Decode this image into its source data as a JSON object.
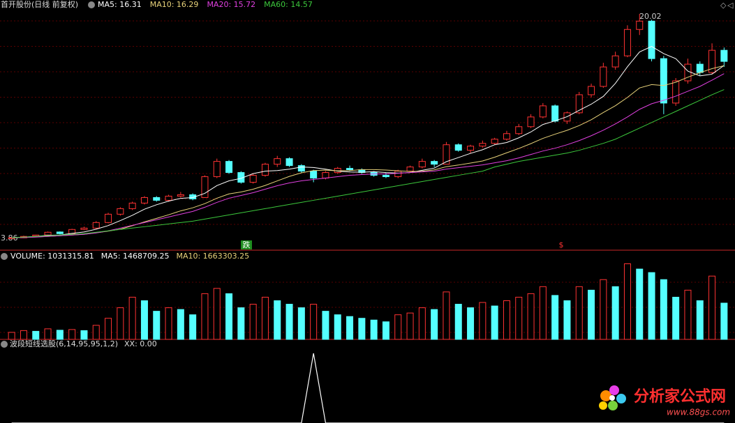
{
  "header": {
    "title": "首开股份(日线 前复权)"
  },
  "chart_data": [
    {
      "type": "candlestick",
      "open": [
        3.86,
        3.9,
        4.02,
        4.1,
        4.32,
        4.2,
        4.5,
        4.6,
        5.0,
        5.6,
        6.0,
        6.4,
        6.8,
        6.6,
        6.9,
        7.0,
        6.8,
        8.3,
        9.4,
        8.6,
        7.9,
        8.4,
        9.2,
        9.6,
        9.1,
        8.7,
        8.2,
        8.6,
        8.9,
        8.8,
        8.6,
        8.4,
        8.3,
        8.7,
        9.0,
        9.4,
        9.2,
        10.6,
        10.2,
        10.5,
        10.7,
        11.0,
        11.4,
        11.9,
        12.6,
        13.4,
        12.3,
        12.9,
        14.2,
        14.8,
        16.2,
        17.0,
        18.9,
        19.5,
        16.8,
        13.6,
        15.2,
        16.4,
        15.8,
        17.4
      ],
      "high": [
        3.95,
        4.05,
        4.12,
        4.35,
        4.36,
        4.55,
        4.7,
        5.1,
        5.7,
        6.1,
        6.5,
        6.9,
        6.9,
        7.0,
        7.2,
        7.1,
        8.4,
        9.6,
        9.5,
        8.7,
        8.5,
        9.3,
        9.8,
        9.7,
        9.2,
        8.8,
        8.7,
        9.0,
        9.1,
        8.9,
        8.7,
        8.6,
        8.8,
        9.1,
        9.6,
        9.5,
        10.8,
        10.7,
        10.6,
        10.9,
        11.1,
        11.6,
        12.1,
        12.8,
        13.6,
        13.5,
        13.0,
        14.4,
        15.0,
        16.5,
        17.3,
        19.2,
        20.02,
        19.6,
        17.0,
        15.4,
        16.8,
        16.6,
        17.9,
        17.6
      ],
      "low": [
        3.86,
        3.88,
        3.96,
        4.05,
        4.15,
        4.18,
        4.45,
        4.55,
        4.95,
        5.5,
        5.9,
        6.3,
        6.5,
        6.5,
        6.8,
        6.6,
        6.8,
        8.2,
        8.5,
        7.8,
        7.8,
        8.3,
        9.0,
        9.0,
        8.6,
        7.9,
        8.1,
        8.5,
        8.7,
        8.5,
        8.3,
        8.2,
        8.2,
        8.6,
        8.9,
        9.0,
        9.2,
        10.1,
        10.0,
        10.4,
        10.6,
        10.9,
        11.3,
        11.8,
        12.5,
        12.2,
        12.1,
        12.8,
        14.0,
        14.7,
        16.0,
        16.9,
        18.5,
        16.6,
        12.8,
        13.4,
        15.0,
        15.6,
        15.7,
        16.2
      ],
      "close": [
        3.9,
        4.0,
        4.1,
        4.3,
        4.2,
        4.5,
        4.6,
        5.0,
        5.6,
        6.0,
        6.4,
        6.8,
        6.6,
        6.9,
        7.0,
        6.7,
        8.3,
        9.4,
        8.6,
        7.9,
        8.4,
        9.2,
        9.6,
        9.1,
        8.7,
        8.2,
        8.6,
        8.9,
        8.8,
        8.6,
        8.4,
        8.3,
        8.7,
        9.0,
        9.4,
        9.2,
        10.6,
        10.2,
        10.5,
        10.7,
        11.0,
        11.4,
        11.9,
        12.6,
        13.4,
        12.3,
        12.9,
        14.2,
        14.8,
        16.2,
        17.0,
        18.9,
        19.5,
        16.8,
        13.6,
        15.2,
        16.4,
        15.8,
        17.4,
        16.6
      ],
      "up_color": "#ff3232",
      "down_color": "#54ffff",
      "series": [
        {
          "name": "MA5: 16.31",
          "color": "#ffffff",
          "values": [
            3.9,
            3.95,
            4.0,
            4.08,
            4.1,
            4.22,
            4.32,
            4.52,
            4.78,
            5.14,
            5.52,
            5.96,
            6.28,
            6.54,
            6.74,
            6.8,
            7.1,
            7.66,
            8.0,
            8.18,
            8.52,
            8.7,
            8.74,
            8.84,
            9.0,
            8.96,
            8.84,
            8.7,
            8.64,
            8.62,
            8.66,
            8.6,
            8.56,
            8.6,
            8.76,
            8.92,
            9.38,
            9.68,
            9.98,
            10.24,
            10.6,
            10.76,
            11.1,
            11.52,
            12.06,
            12.32,
            12.62,
            13.08,
            13.52,
            14.08,
            15.02,
            16.22,
            17.28,
            17.68,
            17.16,
            16.8,
            15.9,
            15.56,
            15.68,
            16.31
          ]
        },
        {
          "name": "MA10: 16.29",
          "color": "#e8d27a",
          "values": [
            3.9,
            3.93,
            3.96,
            4.0,
            4.05,
            4.1,
            4.16,
            4.26,
            4.38,
            4.52,
            4.77,
            5.05,
            5.3,
            5.56,
            5.84,
            6.06,
            6.36,
            6.75,
            7.06,
            7.2,
            7.4,
            7.67,
            8.0,
            8.32,
            8.58,
            8.74,
            8.77,
            8.72,
            8.74,
            8.81,
            8.81,
            8.78,
            8.72,
            8.68,
            8.69,
            8.79,
            9.02,
            9.14,
            9.28,
            9.43,
            9.7,
            10.02,
            10.33,
            10.68,
            11.06,
            11.36,
            11.64,
            11.98,
            12.4,
            12.92,
            13.41,
            14.01,
            14.69,
            14.93,
            14.86,
            15.1,
            15.46,
            15.79,
            16.08,
            16.29
          ]
        },
        {
          "name": "MA20: 15.72",
          "color": "#e040e0",
          "values": [
            3.9,
            3.92,
            3.95,
            4.0,
            4.05,
            4.1,
            4.15,
            4.25,
            4.4,
            4.6,
            4.8,
            5.0,
            5.2,
            5.4,
            5.6,
            5.8,
            6.1,
            6.45,
            6.75,
            6.95,
            7.15,
            7.4,
            7.65,
            7.85,
            8.0,
            8.1,
            8.2,
            8.3,
            8.4,
            8.45,
            8.5,
            8.5,
            8.55,
            8.6,
            8.65,
            8.7,
            8.85,
            8.95,
            9.05,
            9.15,
            9.3,
            9.45,
            9.65,
            9.9,
            10.15,
            10.35,
            10.6,
            10.9,
            11.25,
            11.65,
            12.1,
            12.6,
            13.15,
            13.55,
            13.8,
            14.1,
            14.45,
            14.8,
            15.25,
            15.72
          ]
        },
        {
          "name": "MA60: 14.57",
          "color": "#3cc83c",
          "values": [
            3.9,
            3.95,
            4.0,
            4.05,
            4.1,
            4.15,
            4.2,
            4.3,
            4.4,
            4.5,
            4.6,
            4.7,
            4.8,
            4.9,
            5.0,
            5.1,
            5.25,
            5.4,
            5.55,
            5.7,
            5.85,
            6.0,
            6.15,
            6.3,
            6.45,
            6.6,
            6.75,
            6.9,
            7.05,
            7.2,
            7.35,
            7.5,
            7.65,
            7.8,
            7.95,
            8.1,
            8.25,
            8.4,
            8.55,
            8.7,
            9.0,
            9.2,
            9.4,
            9.55,
            9.7,
            9.85,
            10.0,
            10.2,
            10.45,
            10.7,
            11.0,
            11.4,
            11.8,
            12.2,
            12.6,
            13.0,
            13.4,
            13.8,
            14.2,
            14.57
          ]
        }
      ],
      "ylim": [
        3.06,
        21.02
      ],
      "low_label": 3.86,
      "high_label": 20.02,
      "signals": [
        "跌",
        "$"
      ]
    },
    {
      "type": "bar",
      "legend": [
        "VOLUME: 1031315.81",
        "MA5: 1468709.25",
        "MA10: 1663303.25"
      ],
      "legend_colors": [
        "#ffffff",
        "#ffffff",
        "#e8d27a"
      ],
      "values": [
        200000,
        250000,
        230000,
        300000,
        260000,
        280000,
        250000,
        400000,
        600000,
        900000,
        1200000,
        1100000,
        800000,
        900000,
        850000,
        700000,
        1300000,
        1450000,
        1300000,
        900000,
        1000000,
        1200000,
        1100000,
        1000000,
        900000,
        1000000,
        800000,
        700000,
        650000,
        600000,
        550000,
        500000,
        700000,
        750000,
        900000,
        850000,
        1350000,
        1000000,
        900000,
        1050000,
        950000,
        1100000,
        1200000,
        1300000,
        1500000,
        1250000,
        1100000,
        1500000,
        1400000,
        1700000,
        1500000,
        2150000,
        2000000,
        1900000,
        1700000,
        1200000,
        1400000,
        1100000,
        1800000,
        1031315.81
      ],
      "ylim": [
        0,
        2200000
      ]
    },
    {
      "type": "line",
      "title": "波段短线选股(6,14,95,95,1,2)",
      "legend": "XX: 0.00",
      "color": "#ffffff",
      "values": [
        0,
        0,
        0,
        0,
        0,
        0,
        0,
        0,
        0,
        0,
        0,
        0,
        0,
        0,
        0,
        0,
        0,
        0,
        0,
        0,
        0,
        0,
        0,
        0,
        0,
        100,
        0,
        0,
        0,
        0,
        0,
        0,
        0,
        0,
        0,
        0,
        0,
        0,
        0,
        0,
        0,
        0,
        0,
        0,
        0,
        0,
        0,
        0,
        0,
        0,
        0,
        0,
        0,
        0,
        0,
        0,
        0,
        0,
        0,
        0
      ],
      "ylim": [
        0,
        100
      ]
    }
  ],
  "watermark": {
    "name": "分析家公式网",
    "url": "www.88gs.com"
  }
}
